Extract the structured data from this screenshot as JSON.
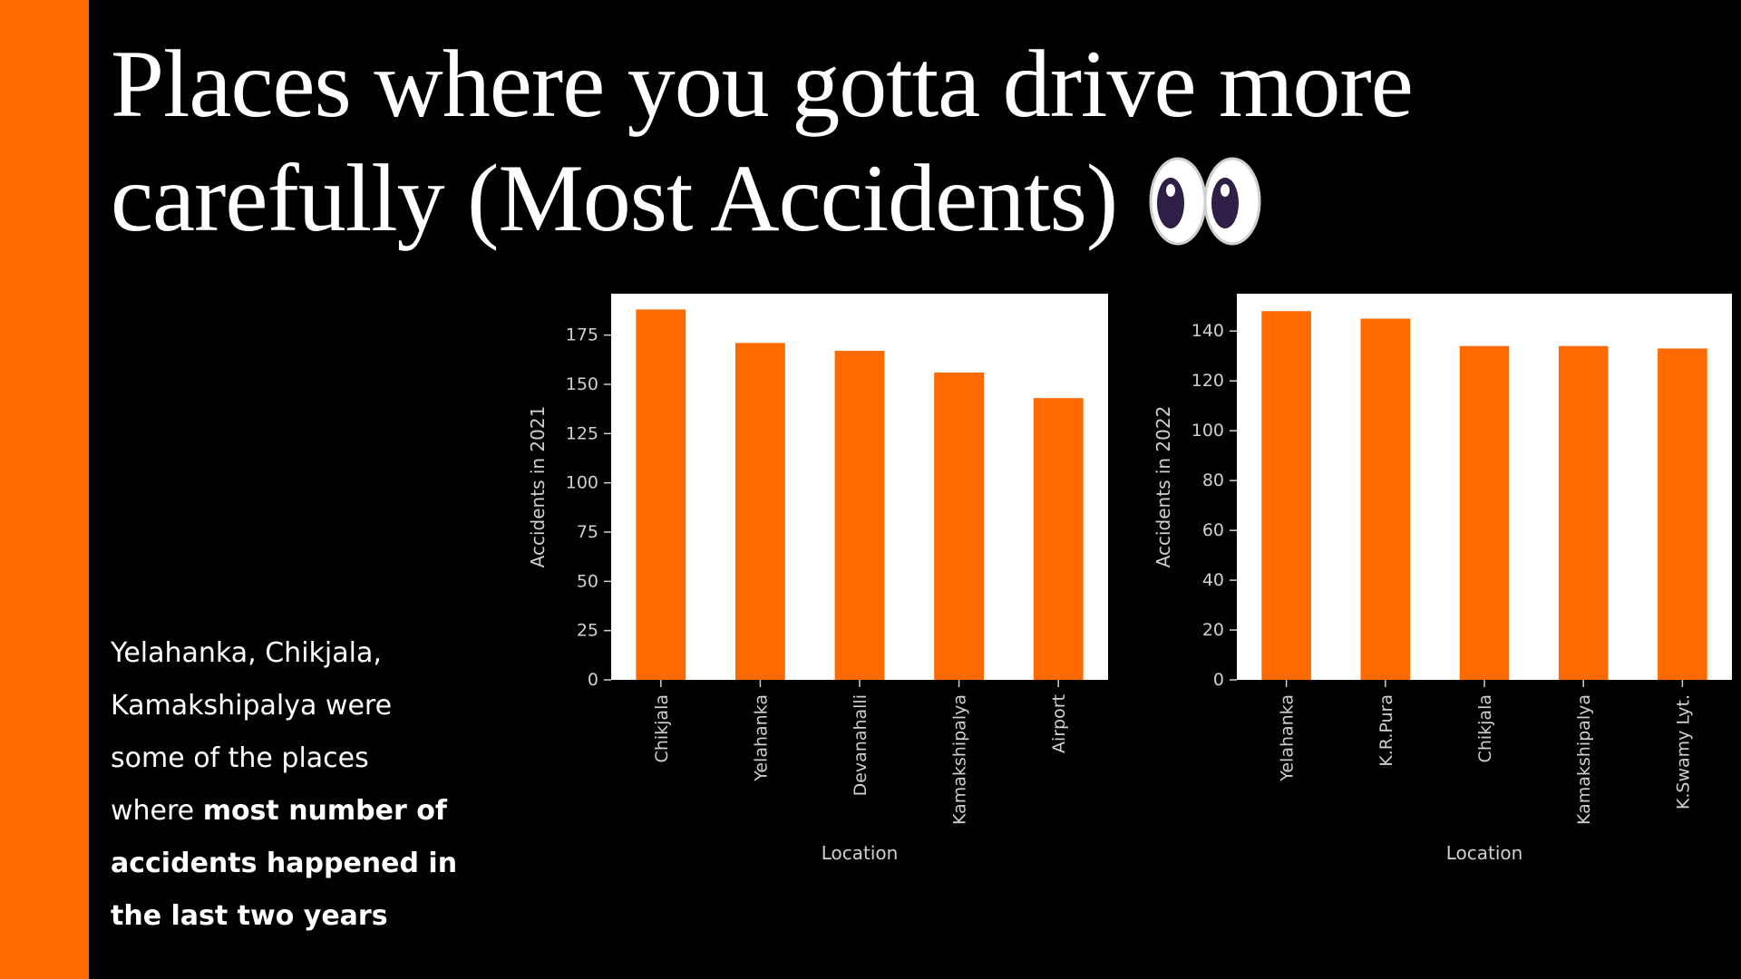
{
  "slide": {
    "title_line1": "Places where you gotta drive more",
    "title_line2": "carefully (Most Accidents)",
    "title_icon": "eyes-emoji",
    "caption": {
      "lines": [
        {
          "parts": [
            {
              "text": "Yelahanka, Chikjala,",
              "bold": false
            }
          ]
        },
        {
          "parts": [
            {
              "text": "Kamakshipalya were",
              "bold": false
            }
          ]
        },
        {
          "parts": [
            {
              "text": "some of the places",
              "bold": false
            }
          ]
        },
        {
          "parts": [
            {
              "text": "where ",
              "bold": false
            },
            {
              "text": "most number of",
              "bold": true
            }
          ]
        },
        {
          "parts": [
            {
              "text": "accidents happened in",
              "bold": true
            }
          ]
        },
        {
          "parts": [
            {
              "text": "the last two years",
              "bold": true
            }
          ]
        }
      ]
    },
    "colors": {
      "accent": "#ff6a00",
      "bar": "#ff6a00",
      "background": "#000000",
      "plot_background": "#ffffff",
      "text": "#ffffff",
      "axis_text": "#cfcfcf"
    }
  },
  "chart_data": [
    {
      "type": "bar",
      "categories": [
        "Chikjala",
        "Yelahanka",
        "Devanahalli",
        "Kamakshipalya",
        "Airport"
      ],
      "values": [
        188,
        171,
        167,
        156,
        143
      ],
      "xlabel": "Location",
      "ylabel": "Accidents in 2021",
      "ylim": [
        0,
        196
      ],
      "yticks": [
        0,
        25,
        50,
        75,
        100,
        125,
        150,
        175
      ],
      "grid": false,
      "legend": "none"
    },
    {
      "type": "bar",
      "categories": [
        "Yelahanka",
        "K.R.Pura",
        "Chikjala",
        "Kamakshipalya",
        "K.Swamy Lyt."
      ],
      "values": [
        148,
        145,
        134,
        134,
        133
      ],
      "xlabel": "Location",
      "ylabel": "Accidents in 2022",
      "ylim": [
        0,
        155
      ],
      "yticks": [
        0,
        20,
        40,
        60,
        80,
        100,
        120,
        140
      ],
      "grid": false,
      "legend": "none"
    }
  ]
}
